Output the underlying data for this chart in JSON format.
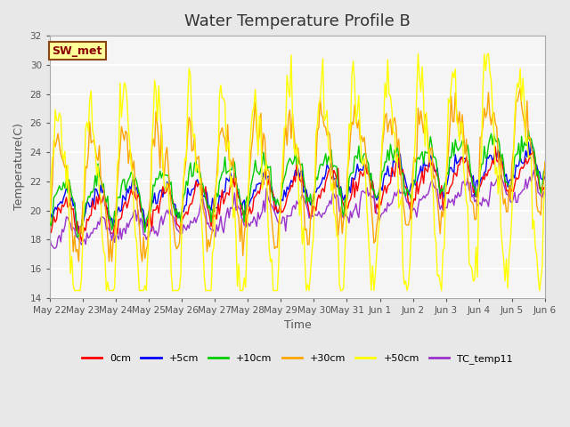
{
  "title": "Water Temperature Profile B",
  "xlabel": "Time",
  "ylabel": "Temperature(C)",
  "ylim": [
    14,
    32
  ],
  "yticks": [
    14,
    16,
    18,
    20,
    22,
    24,
    26,
    28,
    30,
    32
  ],
  "annotation_text": "SW_met",
  "annotation_color": "#8B0000",
  "annotation_bg": "#FFFF99",
  "annotation_border": "#8B4513",
  "bg_color": "#E8E8E8",
  "plot_bg_color": "#F5F5F5",
  "grid_color": "#FFFFFF",
  "series_colors": {
    "0cm": "#FF0000",
    "+5cm": "#0000FF",
    "+10cm": "#00CC00",
    "+30cm": "#FFA500",
    "+50cm": "#FFFF00",
    "TC_temp11": "#9933CC"
  },
  "legend_entries": [
    "0cm",
    "+5cm",
    "+10cm",
    "+30cm",
    "+50cm",
    "TC_temp11"
  ],
  "x_tick_labels": [
    "May 22",
    "May 23",
    "May 24",
    "May 25",
    "May 26",
    "May 27",
    "May 28",
    "May 29",
    "May 30",
    "May 31",
    "Jun 1",
    "Jun 2",
    "Jun 3",
    "Jun 4",
    "Jun 5",
    "Jun 6"
  ],
  "n_points": 360,
  "title_fontsize": 13,
  "label_fontsize": 9,
  "tick_fontsize": 7.5
}
